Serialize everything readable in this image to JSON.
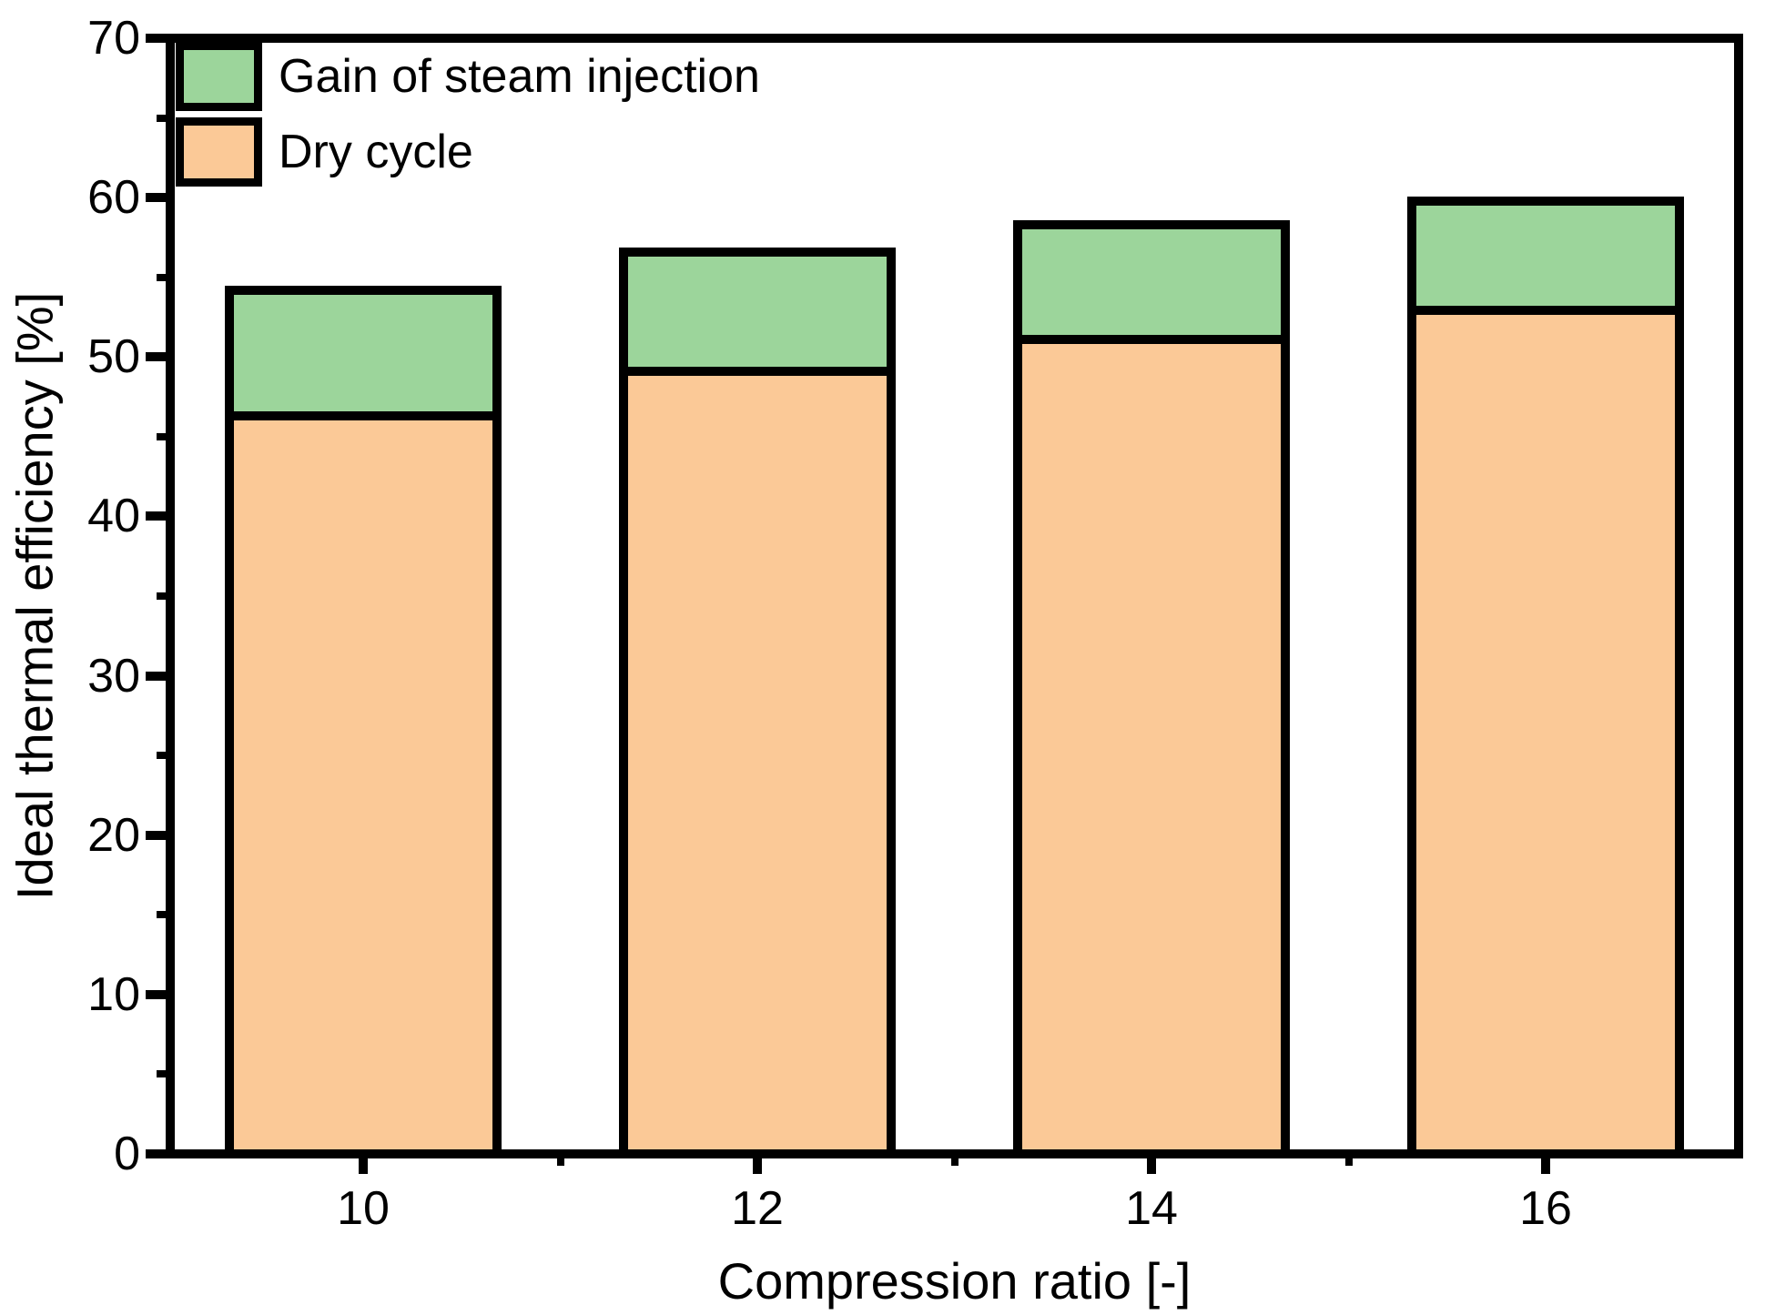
{
  "chart_data": {
    "type": "bar",
    "stacked": true,
    "title": "",
    "xlabel": "Compression ratio [-]",
    "ylabel": "Ideal thermal efficiency [%]",
    "categories": [
      "10",
      "12",
      "14",
      "16"
    ],
    "series": [
      {
        "name": "Gain of steam injection",
        "color": "#9CD59B",
        "values": [
          7.9,
          7.5,
          7.2,
          6.9
        ]
      },
      {
        "name": "Dry cycle",
        "color": "#FBC997",
        "values": [
          46.3,
          49.1,
          51.1,
          52.9
        ]
      }
    ],
    "stack_totals": [
      54.2,
      56.6,
      58.3,
      59.8
    ],
    "ylim": [
      0,
      70
    ],
    "y_major_ticks": [
      0,
      10,
      20,
      30,
      40,
      50,
      60,
      70
    ],
    "y_minor_step": 5,
    "grid": false,
    "legend_position": "top-left",
    "bar_border_color": "#000000",
    "axis_color": "#000000"
  }
}
